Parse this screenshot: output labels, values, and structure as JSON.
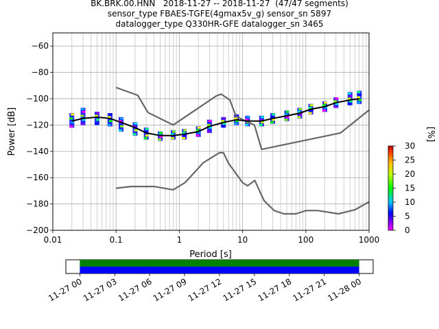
{
  "header": {
    "line1": "BK.BRK.00.HNN   2018-11-27 -- 2018-11-27  (47/47 segments)",
    "line2": "sensor_type FBAES-TGFE(4gmax5v_g) sensor_sn 5897",
    "line3": "datalogger_type Q330HR-GFE datalogger_sn 3465"
  },
  "chart_data": [
    {
      "type": "heatmap",
      "xlabel": "Period [s]",
      "ylabel": "Power [dB]",
      "xscale": "log",
      "xlim": [
        0.01,
        1000
      ],
      "ylim": [
        -200,
        -50
      ],
      "x_ticks": [
        0.01,
        0.1,
        1,
        10,
        100,
        1000
      ],
      "x_tick_labels": [
        "0.01",
        "0.1",
        "1",
        "10",
        "100",
        "1000"
      ],
      "y_ticks": [
        -200,
        -180,
        -160,
        -140,
        -120,
        -100,
        -80,
        -60
      ],
      "y_tick_labels": [
        "−200",
        "−180",
        "−160",
        "−140",
        "−120",
        "−100",
        "−80",
        "−60"
      ],
      "grid": true,
      "ppsd_mode": {
        "period": [
          0.02,
          0.03,
          0.05,
          0.08,
          0.12,
          0.2,
          0.3,
          0.5,
          0.8,
          1.2,
          2,
          3,
          5,
          8,
          12,
          20,
          30,
          50,
          80,
          120,
          200,
          300,
          500,
          700
        ],
        "power": [
          -117,
          -115,
          -114,
          -115,
          -118,
          -122,
          -126,
          -128,
          -128,
          -127,
          -125,
          -121,
          -118,
          -116,
          -117,
          -117,
          -115,
          -113,
          -111,
          -108,
          -106,
          -103,
          -101,
          -100
        ]
      },
      "noise_models": [
        {
          "period": [
            0.1,
            0.22,
            0.32,
            0.8,
            3.8,
            4.6,
            6.3,
            7.9,
            15.4,
            20,
            354.8,
            10000
          ],
          "power": [
            -91.5,
            -97.4,
            -110.5,
            -120,
            -98,
            -96.5,
            -101,
            -113.5,
            -120,
            -138.5,
            -126,
            -70
          ]
        },
        {
          "period": [
            0.1,
            0.17,
            0.4,
            0.8,
            1.24,
            2.4,
            4.3,
            5,
            6,
            10,
            12,
            15.6,
            21.9,
            31.6,
            45,
            70,
            101,
            154,
            328,
            600,
            10000
          ],
          "power": [
            -168,
            -166.7,
            -166.7,
            -169.2,
            -163.7,
            -148.6,
            -141.1,
            -141.1,
            -149,
            -163.8,
            -166.2,
            -162.1,
            -177.5,
            -185,
            -187.5,
            -187.5,
            -185,
            -185,
            -187.5,
            -184.4,
            -151.5
          ]
        }
      ],
      "samples": [
        {
          "period": 0.02,
          "power": [
            -121,
            -118,
            -115,
            -112
          ]
        },
        {
          "period": 0.03,
          "power": [
            -119,
            -116,
            -113,
            -110,
            -108
          ]
        },
        {
          "period": 0.05,
          "power": [
            -119,
            -116,
            -113,
            -111
          ]
        },
        {
          "period": 0.08,
          "power": [
            -120,
            -117,
            -114,
            -112
          ]
        },
        {
          "period": 0.12,
          "power": [
            -124,
            -121,
            -117,
            -115
          ]
        },
        {
          "period": 0.2,
          "power": [
            -127,
            -124,
            -121,
            -119
          ]
        },
        {
          "period": 0.3,
          "power": [
            -130,
            -128,
            -125,
            -123
          ]
        },
        {
          "period": 0.5,
          "power": [
            -131,
            -129,
            -127,
            -126
          ]
        },
        {
          "period": 0.8,
          "power": [
            -130,
            -128,
            -127,
            -125
          ]
        },
        {
          "period": 1.2,
          "power": [
            -130,
            -128,
            -126,
            -124
          ]
        },
        {
          "period": 2,
          "power": [
            -128,
            -126,
            -124,
            -122
          ]
        },
        {
          "period": 3,
          "power": [
            -125,
            -122,
            -120,
            -117
          ]
        },
        {
          "period": 5,
          "power": [
            -121,
            -119,
            -117,
            -115
          ]
        },
        {
          "period": 8,
          "power": [
            -119,
            -117,
            -115,
            -113
          ]
        },
        {
          "period": 12,
          "power": [
            -120,
            -118,
            -116,
            -114
          ]
        },
        {
          "period": 20,
          "power": [
            -120,
            -118,
            -116,
            -114
          ]
        },
        {
          "period": 30,
          "power": [
            -118,
            -116,
            -114,
            -112
          ]
        },
        {
          "period": 50,
          "power": [
            -116,
            -114,
            -112,
            -110
          ]
        },
        {
          "period": 80,
          "power": [
            -114,
            -112,
            -110,
            -108
          ]
        },
        {
          "period": 120,
          "power": [
            -111,
            -109,
            -107,
            -105
          ]
        },
        {
          "period": 200,
          "power": [
            -109,
            -107,
            -105,
            -103
          ]
        },
        {
          "period": 300,
          "power": [
            -106,
            -104,
            -102,
            -100
          ]
        },
        {
          "period": 500,
          "power": [
            -104,
            -102,
            -100,
            -98,
            -96
          ]
        },
        {
          "period": 700,
          "power": [
            -103,
            -101,
            -99,
            -97,
            -95
          ]
        }
      ]
    },
    {
      "type": "colorbar",
      "label": "[%]",
      "range": [
        0,
        30
      ],
      "ticks": [
        0,
        5,
        10,
        15,
        20,
        25,
        30
      ],
      "tick_labels": [
        "0",
        "5",
        "10",
        "15",
        "20",
        "25",
        "30"
      ]
    },
    {
      "type": "timeline",
      "tick_labels": [
        "11-27 00",
        "11-27 03",
        "11-27 06",
        "11-27 09",
        "11-27 12",
        "11-27 15",
        "11-27 18",
        "11-27 21",
        "11-28 00"
      ],
      "coverage": [
        {
          "name": "",
          "color": "#008000",
          "start_hour": 0,
          "end_hour": 24
        },
        {
          "name": "",
          "color": "#0000ff",
          "start_hour": 0,
          "end_hour": 24
        }
      ],
      "xlim_hours": [
        -1.2,
        25.2
      ]
    }
  ]
}
